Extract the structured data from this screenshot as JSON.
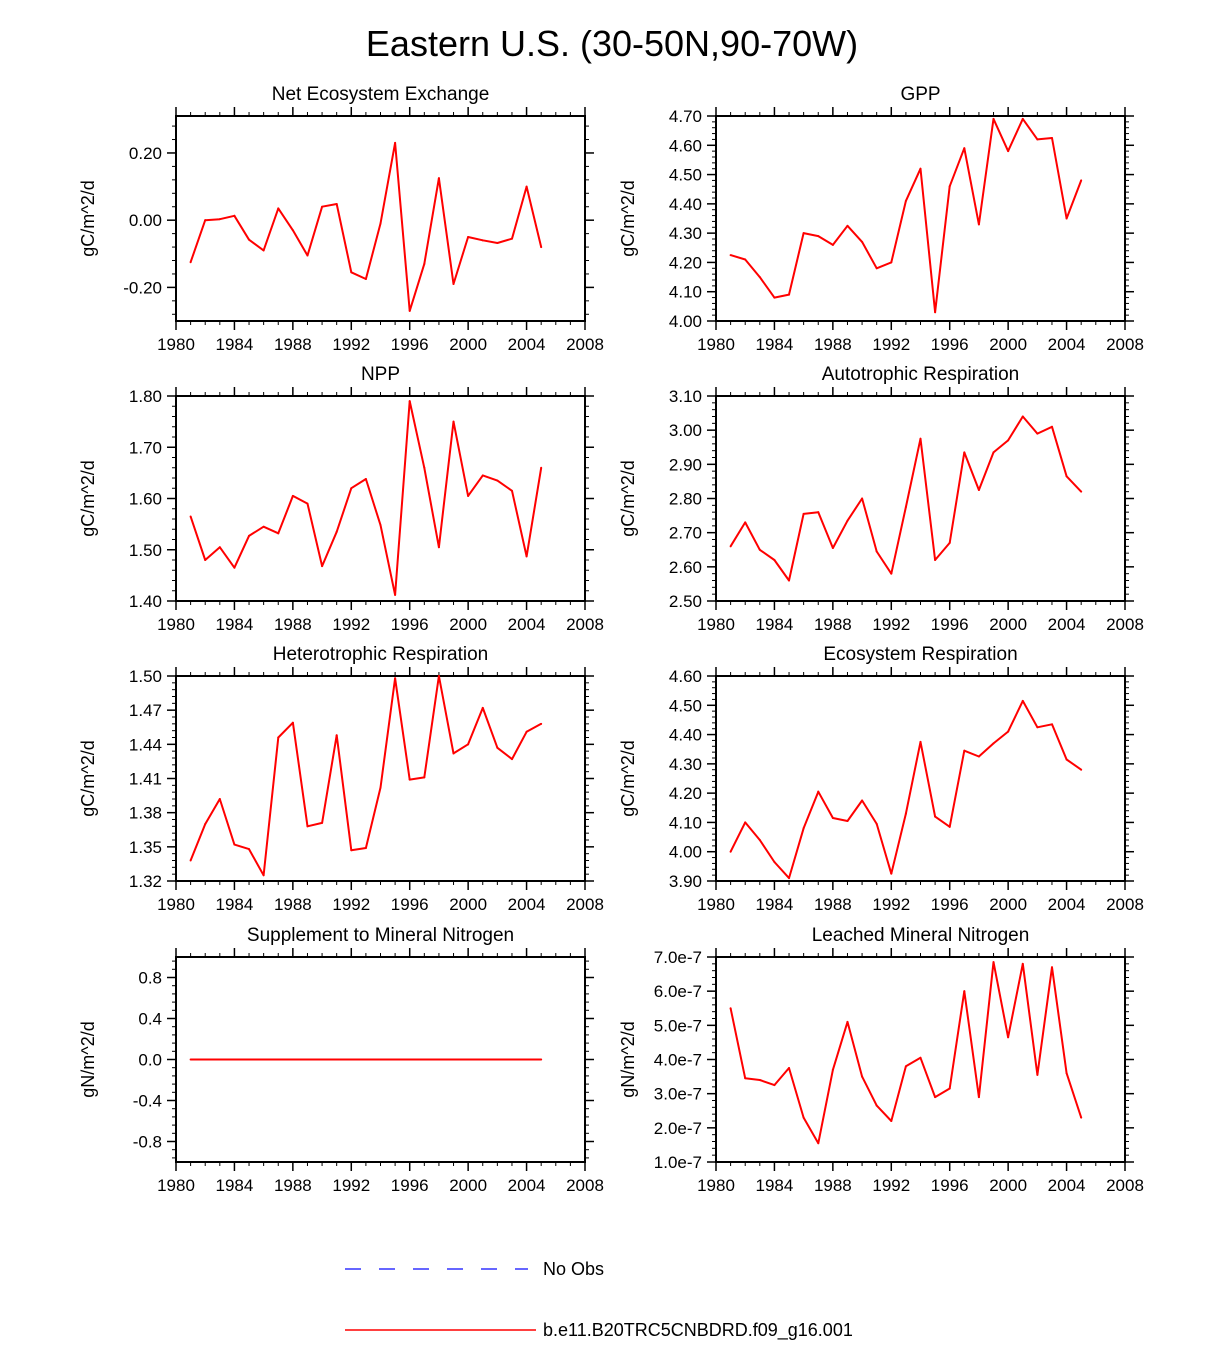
{
  "title": "Eastern U.S. (30-50N,90-70W)",
  "legend": {
    "items": [
      {
        "label": "No Obs",
        "color": "#3333ff",
        "style": "dashed"
      },
      {
        "label": "b.e11.B20TRC5CNBDRD.f09_g16.001",
        "color": "#ff0000",
        "style": "solid"
      }
    ]
  },
  "colors": {
    "series": "#ff0000",
    "obs": "#3333ff"
  },
  "chart_data": [
    {
      "type": "line",
      "title": "Net Ecosystem Exchange",
      "ylabel": "gC/m^2/d",
      "xlabel": "",
      "xlim": [
        1980,
        2008
      ],
      "ylim": [
        -0.3,
        0.31
      ],
      "xticks": [
        1980,
        1984,
        1988,
        1992,
        1996,
        2000,
        2004,
        2008
      ],
      "xtick_labels": [
        "1980",
        "1984",
        "1988",
        "1992",
        "1996",
        "2000",
        "2004",
        "2008"
      ],
      "yticks": [
        -0.2,
        0.0,
        0.2
      ],
      "ytick_labels": [
        "-0.20",
        "0.00",
        "0.20"
      ],
      "x": [
        1981,
        1982,
        1983,
        1984,
        1985,
        1986,
        1987,
        1988,
        1989,
        1990,
        1991,
        1992,
        1993,
        1994,
        1995,
        1996,
        1997,
        1998,
        1999,
        2000,
        2001,
        2002,
        2003,
        2004,
        2005
      ],
      "values": [
        -0.125,
        0.0,
        0.003,
        0.013,
        -0.058,
        -0.09,
        0.035,
        -0.03,
        -0.105,
        0.04,
        0.048,
        -0.155,
        -0.175,
        -0.01,
        0.23,
        -0.27,
        -0.13,
        0.125,
        -0.19,
        -0.05,
        -0.06,
        -0.068,
        -0.055,
        0.1,
        -0.08
      ]
    },
    {
      "type": "line",
      "title": "GPP",
      "ylabel": "gC/m^2/d",
      "xlabel": "",
      "xlim": [
        1980,
        2008
      ],
      "ylim": [
        4.0,
        4.7
      ],
      "xticks": [
        1980,
        1984,
        1988,
        1992,
        1996,
        2000,
        2004,
        2008
      ],
      "xtick_labels": [
        "1980",
        "1984",
        "1988",
        "1992",
        "1996",
        "2000",
        "2004",
        "2008"
      ],
      "yticks": [
        4.0,
        4.1,
        4.2,
        4.3,
        4.4,
        4.5,
        4.6,
        4.7
      ],
      "ytick_labels": [
        "4.00",
        "4.10",
        "4.20",
        "4.30",
        "4.40",
        "4.50",
        "4.60",
        "4.70"
      ],
      "x": [
        1981,
        1982,
        1983,
        1984,
        1985,
        1986,
        1987,
        1988,
        1989,
        1990,
        1991,
        1992,
        1993,
        1994,
        1995,
        1996,
        1997,
        1998,
        1999,
        2000,
        2001,
        2002,
        2003,
        2004,
        2005
      ],
      "values": [
        4.225,
        4.21,
        4.15,
        4.08,
        4.09,
        4.3,
        4.29,
        4.26,
        4.325,
        4.27,
        4.18,
        4.2,
        4.41,
        4.52,
        4.03,
        4.46,
        4.59,
        4.33,
        4.69,
        4.58,
        4.69,
        4.62,
        4.625,
        4.35,
        4.48
      ]
    },
    {
      "type": "line",
      "title": "NPP",
      "ylabel": "gC/m^2/d",
      "xlabel": "",
      "xlim": [
        1980,
        2008
      ],
      "ylim": [
        1.4,
        1.8
      ],
      "xticks": [
        1980,
        1984,
        1988,
        1992,
        1996,
        2000,
        2004,
        2008
      ],
      "xtick_labels": [
        "1980",
        "1984",
        "1988",
        "1992",
        "1996",
        "2000",
        "2004",
        "2008"
      ],
      "yticks": [
        1.4,
        1.5,
        1.6,
        1.7,
        1.8
      ],
      "ytick_labels": [
        "1.40",
        "1.50",
        "1.60",
        "1.70",
        "1.80"
      ],
      "x": [
        1981,
        1982,
        1983,
        1984,
        1985,
        1986,
        1987,
        1988,
        1989,
        1990,
        1991,
        1992,
        1993,
        1994,
        1995,
        1996,
        1997,
        1998,
        1999,
        2000,
        2001,
        2002,
        2003,
        2004,
        2005
      ],
      "values": [
        1.565,
        1.48,
        1.505,
        1.465,
        1.527,
        1.545,
        1.532,
        1.605,
        1.59,
        1.468,
        1.535,
        1.62,
        1.638,
        1.548,
        1.412,
        1.79,
        1.66,
        1.505,
        1.75,
        1.605,
        1.645,
        1.635,
        1.615,
        1.487,
        1.66
      ]
    },
    {
      "type": "line",
      "title": "Autotrophic Respiration",
      "ylabel": "gC/m^2/d",
      "xlabel": "",
      "xlim": [
        1980,
        2008
      ],
      "ylim": [
        2.5,
        3.1
      ],
      "xticks": [
        1980,
        1984,
        1988,
        1992,
        1996,
        2000,
        2004,
        2008
      ],
      "xtick_labels": [
        "1980",
        "1984",
        "1988",
        "1992",
        "1996",
        "2000",
        "2004",
        "2008"
      ],
      "yticks": [
        2.5,
        2.6,
        2.7,
        2.8,
        2.9,
        3.0,
        3.1
      ],
      "ytick_labels": [
        "2.50",
        "2.60",
        "2.70",
        "2.80",
        "2.90",
        "3.00",
        "3.10"
      ],
      "x": [
        1981,
        1982,
        1983,
        1984,
        1985,
        1986,
        1987,
        1988,
        1989,
        1990,
        1991,
        1992,
        1993,
        1994,
        1995,
        1996,
        1997,
        1998,
        1999,
        2000,
        2001,
        2002,
        2003,
        2004,
        2005
      ],
      "values": [
        2.66,
        2.73,
        2.65,
        2.62,
        2.56,
        2.755,
        2.76,
        2.655,
        2.735,
        2.8,
        2.645,
        2.58,
        2.775,
        2.975,
        2.62,
        2.67,
        2.935,
        2.825,
        2.935,
        2.97,
        3.04,
        2.99,
        3.01,
        2.865,
        2.82
      ]
    },
    {
      "type": "line",
      "title": "Heterotrophic Respiration",
      "ylabel": "gC/m^2/d",
      "xlabel": "",
      "xlim": [
        1980,
        2008
      ],
      "ylim": [
        1.32,
        1.5
      ],
      "xticks": [
        1980,
        1984,
        1988,
        1992,
        1996,
        2000,
        2004,
        2008
      ],
      "xtick_labels": [
        "1980",
        "1984",
        "1988",
        "1992",
        "1996",
        "2000",
        "2004",
        "2008"
      ],
      "yticks": [
        1.32,
        1.35,
        1.38,
        1.41,
        1.44,
        1.47,
        1.5
      ],
      "ytick_labels": [
        "1.32",
        "1.35",
        "1.38",
        "1.41",
        "1.44",
        "1.47",
        "1.50"
      ],
      "x": [
        1981,
        1982,
        1983,
        1984,
        1985,
        1986,
        1987,
        1988,
        1989,
        1990,
        1991,
        1992,
        1993,
        1994,
        1995,
        1996,
        1997,
        1998,
        1999,
        2000,
        2001,
        2002,
        2003,
        2004,
        2005
      ],
      "values": [
        1.338,
        1.37,
        1.392,
        1.352,
        1.348,
        1.325,
        1.446,
        1.459,
        1.368,
        1.371,
        1.448,
        1.347,
        1.349,
        1.402,
        1.498,
        1.409,
        1.411,
        1.5,
        1.432,
        1.44,
        1.472,
        1.437,
        1.427,
        1.451,
        1.458
      ]
    },
    {
      "type": "line",
      "title": "Ecosystem Respiration",
      "ylabel": "gC/m^2/d",
      "xlabel": "",
      "xlim": [
        1980,
        2008
      ],
      "ylim": [
        3.9,
        4.6
      ],
      "xticks": [
        1980,
        1984,
        1988,
        1992,
        1996,
        2000,
        2004,
        2008
      ],
      "xtick_labels": [
        "1980",
        "1984",
        "1988",
        "1992",
        "1996",
        "2000",
        "2004",
        "2008"
      ],
      "yticks": [
        3.9,
        4.0,
        4.1,
        4.2,
        4.3,
        4.4,
        4.5,
        4.6
      ],
      "ytick_labels": [
        "3.90",
        "4.00",
        "4.10",
        "4.20",
        "4.30",
        "4.40",
        "4.50",
        "4.60"
      ],
      "x": [
        1981,
        1982,
        1983,
        1984,
        1985,
        1986,
        1987,
        1988,
        1989,
        1990,
        1991,
        1992,
        1993,
        1994,
        1995,
        1996,
        1997,
        1998,
        1999,
        2000,
        2001,
        2002,
        2003,
        2004,
        2005
      ],
      "values": [
        4.0,
        4.1,
        4.04,
        3.965,
        3.91,
        4.08,
        4.205,
        4.115,
        4.105,
        4.175,
        4.095,
        3.925,
        4.13,
        4.375,
        4.12,
        4.085,
        4.345,
        4.325,
        4.37,
        4.41,
        4.515,
        4.425,
        4.435,
        4.315,
        4.28
      ]
    },
    {
      "type": "line",
      "title": "Supplement to Mineral Nitrogen",
      "ylabel": "gN/m^2/d",
      "xlabel": "",
      "xlim": [
        1980,
        2008
      ],
      "ylim": [
        -1.0,
        1.0
      ],
      "xticks": [
        1980,
        1984,
        1988,
        1992,
        1996,
        2000,
        2004,
        2008
      ],
      "xtick_labels": [
        "1980",
        "1984",
        "1988",
        "1992",
        "1996",
        "2000",
        "2004",
        "2008"
      ],
      "yticks": [
        -0.8,
        -0.4,
        0.0,
        0.4,
        0.8
      ],
      "ytick_labels": [
        "-0.8",
        "-0.4",
        "0.0",
        "0.4",
        "0.8"
      ],
      "x": [
        1981,
        1982,
        1983,
        1984,
        1985,
        1986,
        1987,
        1988,
        1989,
        1990,
        1991,
        1992,
        1993,
        1994,
        1995,
        1996,
        1997,
        1998,
        1999,
        2000,
        2001,
        2002,
        2003,
        2004,
        2005
      ],
      "values": [
        0,
        0,
        0,
        0,
        0,
        0,
        0,
        0,
        0,
        0,
        0,
        0,
        0,
        0,
        0,
        0,
        0,
        0,
        0,
        0,
        0,
        0,
        0,
        0,
        0
      ]
    },
    {
      "type": "line",
      "title": "Leached Mineral Nitrogen",
      "ylabel": "gN/m^2/d",
      "xlabel": "",
      "xlim": [
        1980,
        2008
      ],
      "ylim": [
        1e-07,
        7e-07
      ],
      "xticks": [
        1980,
        1984,
        1988,
        1992,
        1996,
        2000,
        2004,
        2008
      ],
      "xtick_labels": [
        "1980",
        "1984",
        "1988",
        "1992",
        "1996",
        "2000",
        "2004",
        "2008"
      ],
      "yticks": [
        1e-07,
        2e-07,
        3e-07,
        4e-07,
        5e-07,
        6e-07,
        7e-07
      ],
      "ytick_labels": [
        "1.0e-7",
        "2.0e-7",
        "3.0e-7",
        "4.0e-7",
        "5.0e-7",
        "6.0e-7",
        "7.0e-7"
      ],
      "x": [
        1981,
        1982,
        1983,
        1984,
        1985,
        1986,
        1987,
        1988,
        1989,
        1990,
        1991,
        1992,
        1993,
        1994,
        1995,
        1996,
        1997,
        1998,
        1999,
        2000,
        2001,
        2002,
        2003,
        2004,
        2005
      ],
      "values": [
        5.5e-07,
        3.45e-07,
        3.4e-07,
        3.25e-07,
        3.75e-07,
        2.3e-07,
        1.55e-07,
        3.7e-07,
        5.1e-07,
        3.5e-07,
        2.65e-07,
        2.2e-07,
        3.8e-07,
        4.05e-07,
        2.9e-07,
        3.15e-07,
        6e-07,
        2.9e-07,
        6.85e-07,
        4.65e-07,
        6.8e-07,
        3.55e-07,
        6.7e-07,
        3.6e-07,
        2.3e-07
      ]
    }
  ]
}
